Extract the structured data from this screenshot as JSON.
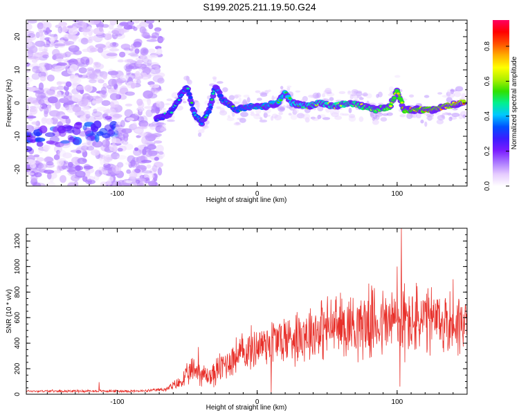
{
  "figure": {
    "title": "S199.2025.211.19.50.G24"
  },
  "chart_data": [
    {
      "type": "heatmap",
      "xlabel": "Height of straight line (km)",
      "ylabel": "Frequency (Hz)",
      "xlim": [
        -165,
        150
      ],
      "ylim": [
        -25,
        25
      ],
      "x_ticks": [
        -100,
        0,
        100
      ],
      "y_ticks": [
        -20,
        -10,
        0,
        10,
        20
      ],
      "grid": false,
      "colorbar": {
        "label": "Normalized spectral amplitude",
        "range": [
          0,
          0.95
        ],
        "ticks": [
          0.0,
          0.2,
          0.4,
          0.6,
          0.8
        ],
        "colormap": [
          "#ffffff",
          "#e6ccff",
          "#aa77ff",
          "#7a1cff",
          "#3b1cff",
          "#0050ff",
          "#00c8ff",
          "#00f090",
          "#30e000",
          "#b0f000",
          "#ffff00",
          "#ffb000",
          "#ff5000",
          "#ff0000",
          "#ff0060"
        ]
      },
      "ridge": [
        {
          "x": -72,
          "y": -5
        },
        {
          "x": -62,
          "y": -3
        },
        {
          "x": -55,
          "y": 2
        },
        {
          "x": -50,
          "y": 5
        },
        {
          "x": -45,
          "y": -3
        },
        {
          "x": -40,
          "y": -6
        },
        {
          "x": -34,
          "y": -2
        },
        {
          "x": -30,
          "y": 5
        },
        {
          "x": -25,
          "y": 1
        },
        {
          "x": -15,
          "y": -2
        },
        {
          "x": -5,
          "y": -1
        },
        {
          "x": 5,
          "y": -1
        },
        {
          "x": 15,
          "y": 0
        },
        {
          "x": 20,
          "y": 3
        },
        {
          "x": 25,
          "y": 0
        },
        {
          "x": 35,
          "y": -1
        },
        {
          "x": 45,
          "y": 0
        },
        {
          "x": 55,
          "y": -1
        },
        {
          "x": 65,
          "y": 0
        },
        {
          "x": 75,
          "y": -1
        },
        {
          "x": 85,
          "y": -2
        },
        {
          "x": 95,
          "y": -1
        },
        {
          "x": 100,
          "y": 4
        },
        {
          "x": 105,
          "y": -2
        },
        {
          "x": 115,
          "y": -2
        },
        {
          "x": 125,
          "y": -2
        },
        {
          "x": 135,
          "y": -1
        },
        {
          "x": 145,
          "y": 0
        }
      ]
    },
    {
      "type": "line",
      "xlabel": "Height of straight line (km)",
      "ylabel": "SNR (10 * v/v)",
      "xlim": [
        -165,
        150
      ],
      "ylim": [
        0,
        1300
      ],
      "x_ticks": [
        -100,
        0,
        100
      ],
      "y_ticks": [
        0,
        200,
        400,
        600,
        800,
        1000,
        1200
      ],
      "grid": false,
      "color": "#e8302a",
      "envelope": {
        "x": [
          -165,
          -130,
          -100,
          -80,
          -65,
          -55,
          -45,
          -38,
          -33,
          -25,
          -15,
          -5,
          5,
          10,
          20,
          30,
          40,
          50,
          60,
          70,
          80,
          90,
          100,
          110,
          120,
          130,
          140,
          150
        ],
        "mean": [
          25,
          25,
          25,
          25,
          40,
          90,
          200,
          150,
          140,
          220,
          300,
          350,
          400,
          420,
          430,
          470,
          500,
          520,
          540,
          550,
          560,
          560,
          570,
          570,
          570,
          560,
          560,
          570
        ],
        "amp": [
          10,
          12,
          12,
          12,
          20,
          70,
          140,
          110,
          110,
          160,
          180,
          200,
          220,
          240,
          250,
          270,
          280,
          300,
          300,
          320,
          330,
          340,
          360,
          360,
          340,
          320,
          320,
          300
        ]
      },
      "spikes": [
        {
          "x": -113,
          "y": 95
        },
        {
          "x": -42,
          "y": 370
        },
        {
          "x": 10,
          "y": 15
        },
        {
          "x": 100,
          "y": 1000
        },
        {
          "x": 102,
          "y": 60
        },
        {
          "x": 103,
          "y": 1300
        },
        {
          "x": 140,
          "y": 900
        }
      ]
    }
  ]
}
